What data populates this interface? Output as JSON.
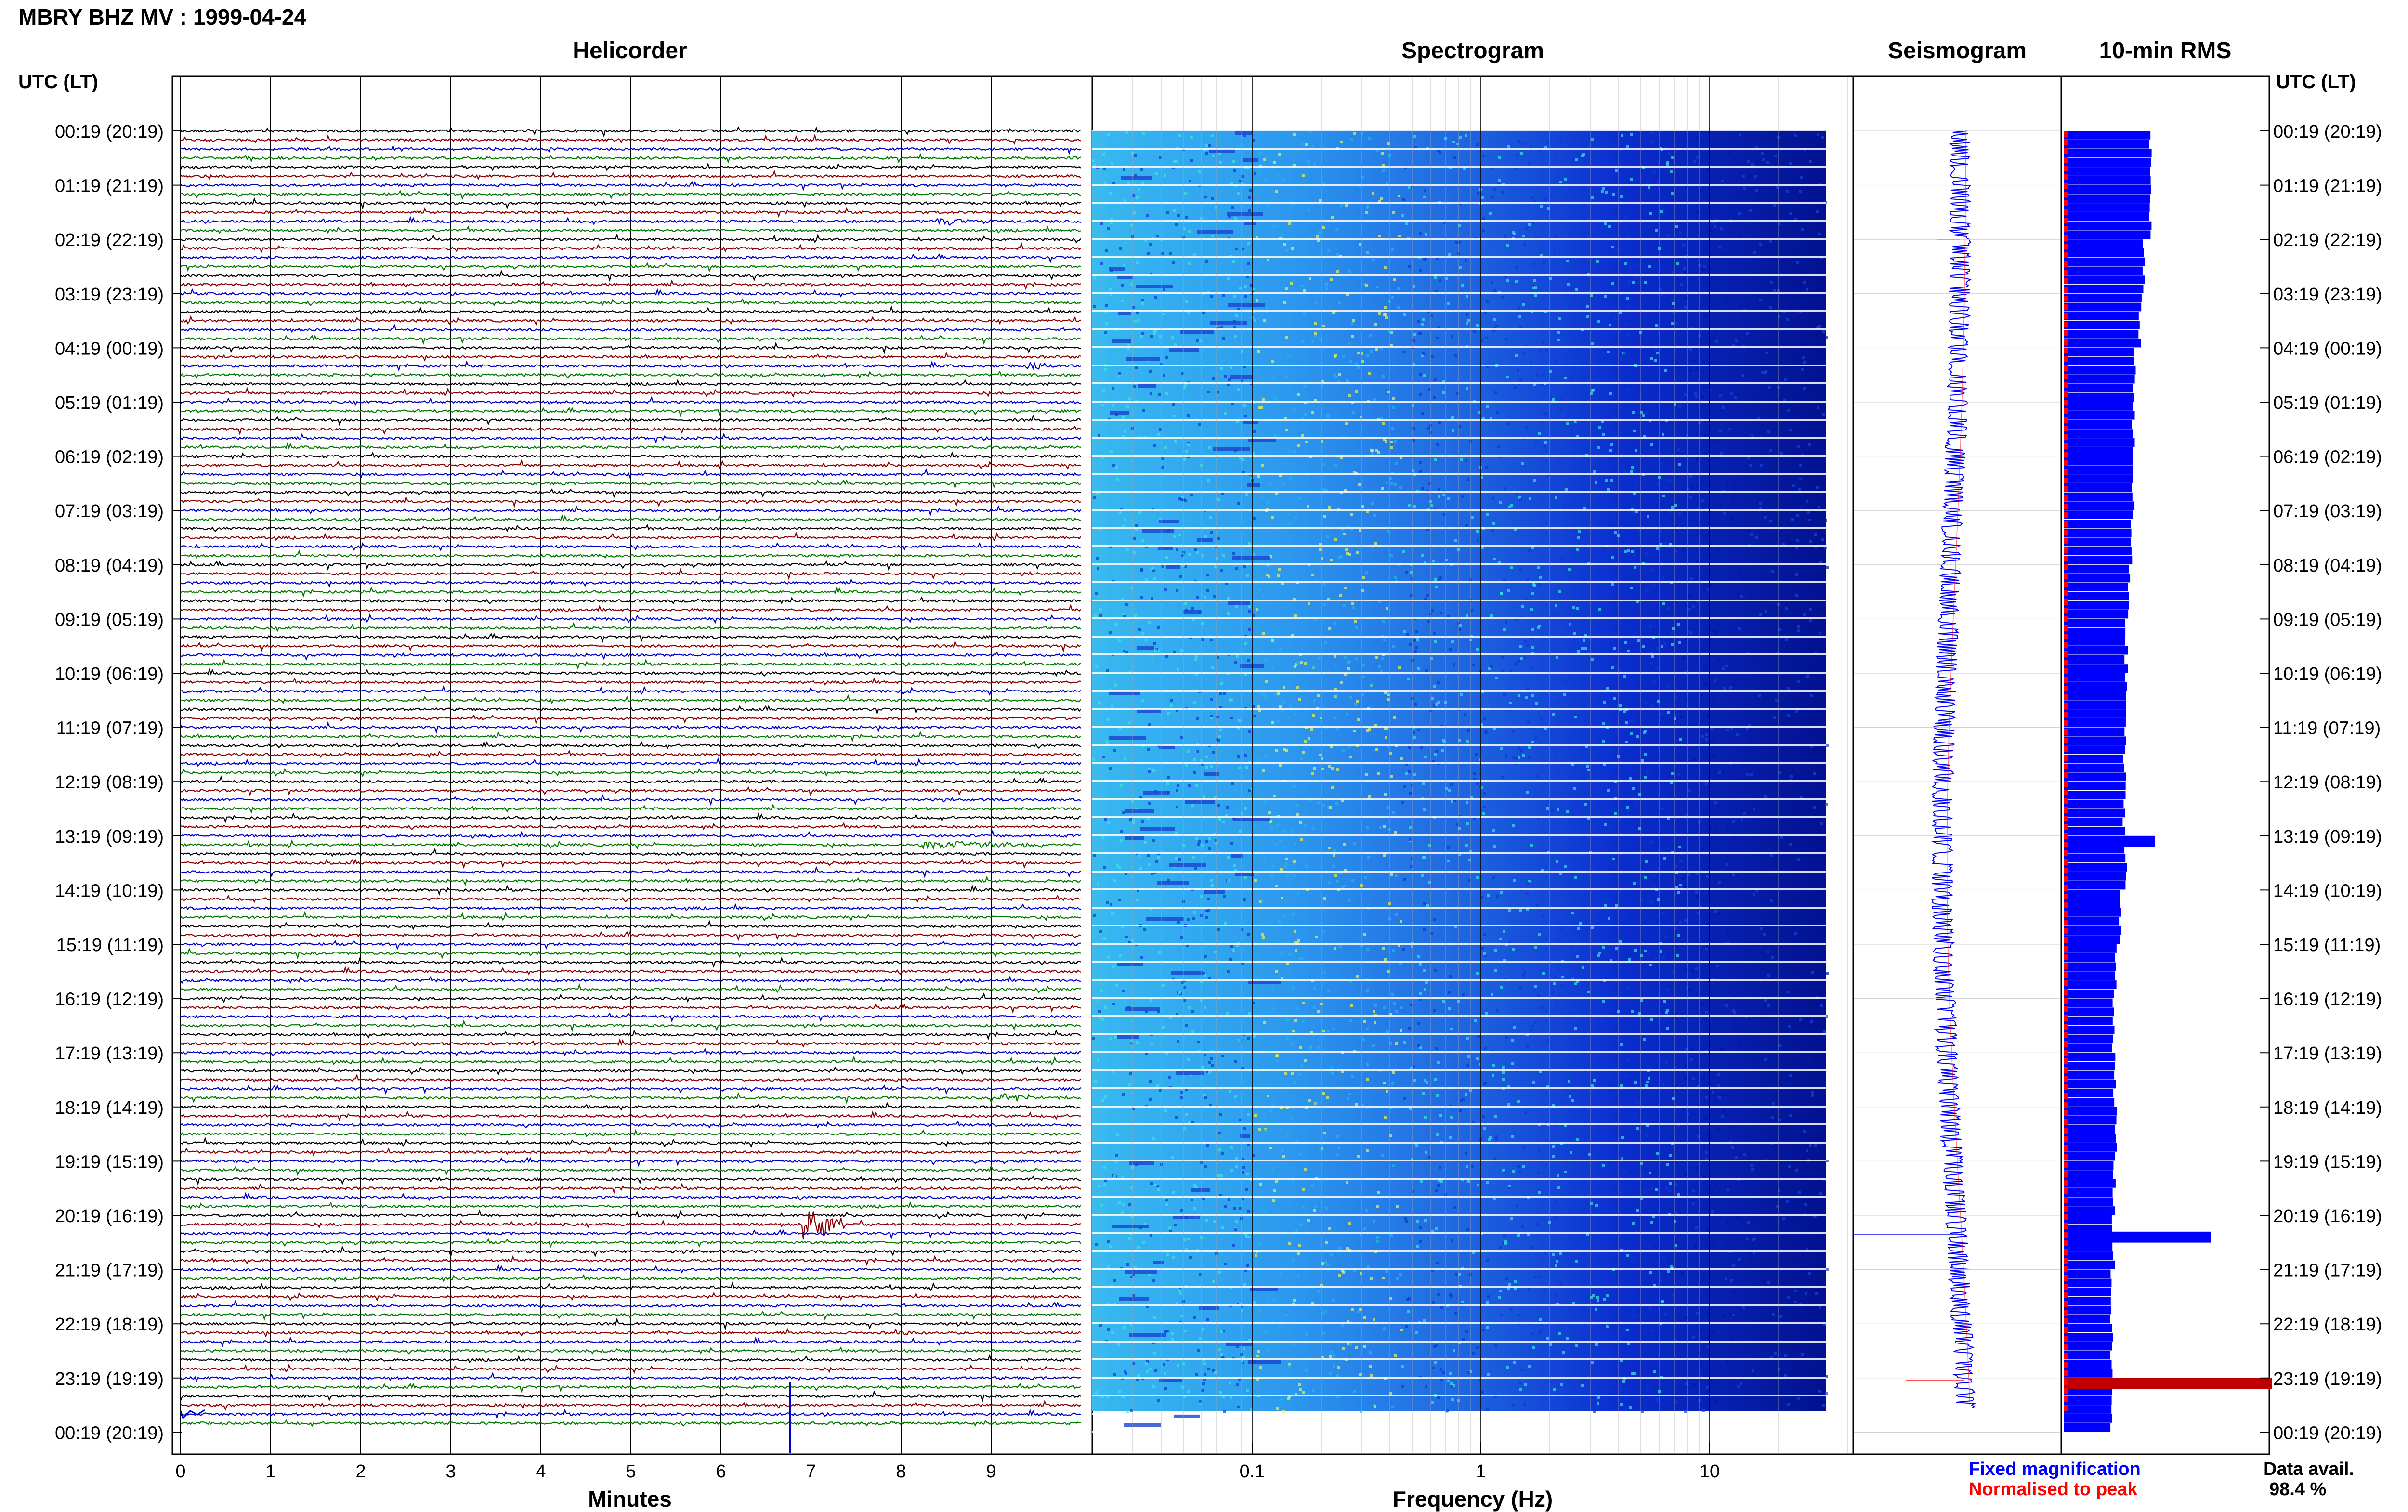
{
  "header": {
    "title": "MBRY BHZ MV : 1999-04-24"
  },
  "panels": {
    "helicorder_title": "Helicorder",
    "spectrogram_title": "Spectrogram",
    "seismogram_title": "Seismogram",
    "rms_title": "10-min RMS"
  },
  "axes": {
    "time_label_left": "UTC (LT)",
    "time_label_right": "UTC (LT)",
    "minutes_label": "Minutes",
    "frequency_label": "Frequency (Hz)"
  },
  "legend": {
    "fixed_magnification": "Fixed magnification",
    "normalised_to_peak": "Normalised to peak",
    "data_avail_label": "Data avail.",
    "data_avail_value": "98.4 %"
  },
  "colors": {
    "trace_cycle": [
      "#000000",
      "#8b0000",
      "#0000cd",
      "#007a00"
    ],
    "fixed_magnification": "#0000ff",
    "normalised_to_peak": "#ff0000",
    "rms_bar": "#0000ff",
    "rms_peak_bar": "#c00000"
  },
  "chart_data": [
    {
      "type": "line",
      "panel": "Helicorder",
      "xlabel": "Minutes",
      "xticks": [
        0,
        1,
        2,
        3,
        4,
        5,
        6,
        7,
        8,
        9
      ],
      "xlim": [
        0,
        10
      ],
      "time_ticks": [
        "00:19 (20:19)",
        "01:19 (21:19)",
        "02:19 (22:19)",
        "03:19 (23:19)",
        "04:19 (00:19)",
        "05:19 (01:19)",
        "06:19 (02:19)",
        "07:19 (03:19)",
        "08:19 (04:19)",
        "09:19 (05:19)",
        "10:19 (06:19)",
        "11:19 (07:19)",
        "12:19 (08:19)",
        "13:19 (09:19)",
        "14:19 (10:19)",
        "15:19 (11:19)",
        "16:19 (12:19)",
        "17:19 (13:19)",
        "18:19 (14:19)",
        "19:19 (15:19)",
        "20:19 (16:19)",
        "21:19 (17:19)",
        "22:19 (18:19)",
        "23:19 (19:19)",
        "00:19 (20:19)"
      ],
      "rows_per_hour": 6,
      "events": [
        {
          "row": 10,
          "minute": 8.4,
          "duration_min": 0.6,
          "amplitude": 2.0
        },
        {
          "row": 26,
          "minute": 9.4,
          "duration_min": 0.4,
          "amplitude": 1.4
        },
        {
          "row": 79,
          "minute": 8.2,
          "duration_min": 1.4,
          "amplitude": 2.0
        },
        {
          "row": 107,
          "minute": 9.1,
          "duration_min": 0.5,
          "amplitude": 2.4
        },
        {
          "row": 121,
          "minute": 6.9,
          "duration_min": 0.5,
          "amplitude": 10.0
        },
        {
          "row": 133,
          "minute": 7.9,
          "duration_min": 0.4,
          "amplitude": 1.5
        }
      ]
    },
    {
      "type": "heatmap",
      "panel": "Spectrogram",
      "xlabel": "Frequency (Hz)",
      "xscale": "log",
      "xlim": [
        0.02,
        50
      ],
      "xticks": [
        0.1,
        1,
        10
      ],
      "peak_band_hz": [
        0.2,
        0.5
      ]
    },
    {
      "type": "line",
      "panel": "Seismogram",
      "series": [
        {
          "name": "Fixed magnification"
        },
        {
          "name": "Normalised to peak"
        }
      ],
      "spikes": [
        {
          "hour": 2.0,
          "value": -0.6
        },
        {
          "hour": 20.35,
          "value": -3.2
        },
        {
          "hour": 23.05,
          "value": -1.5
        }
      ]
    },
    {
      "type": "bar",
      "panel": "10-min RMS",
      "orientation": "horizontal",
      "hourly_rms": [
        1.0,
        1.0,
        0.92,
        0.88,
        0.82,
        0.8,
        0.8,
        0.78,
        0.75,
        0.72,
        0.72,
        0.7,
        0.7,
        0.72,
        0.65,
        0.6,
        0.58,
        0.58,
        0.6,
        0.58,
        0.57,
        0.55,
        0.55,
        0.55
      ],
      "peaks": [
        {
          "hour": 13.0,
          "value": 1.05,
          "color": "blue"
        },
        {
          "hour": 20.3,
          "value": 1.7,
          "color": "blue"
        },
        {
          "hour": 23.0,
          "value": 2.4,
          "color": "red"
        }
      ]
    }
  ]
}
